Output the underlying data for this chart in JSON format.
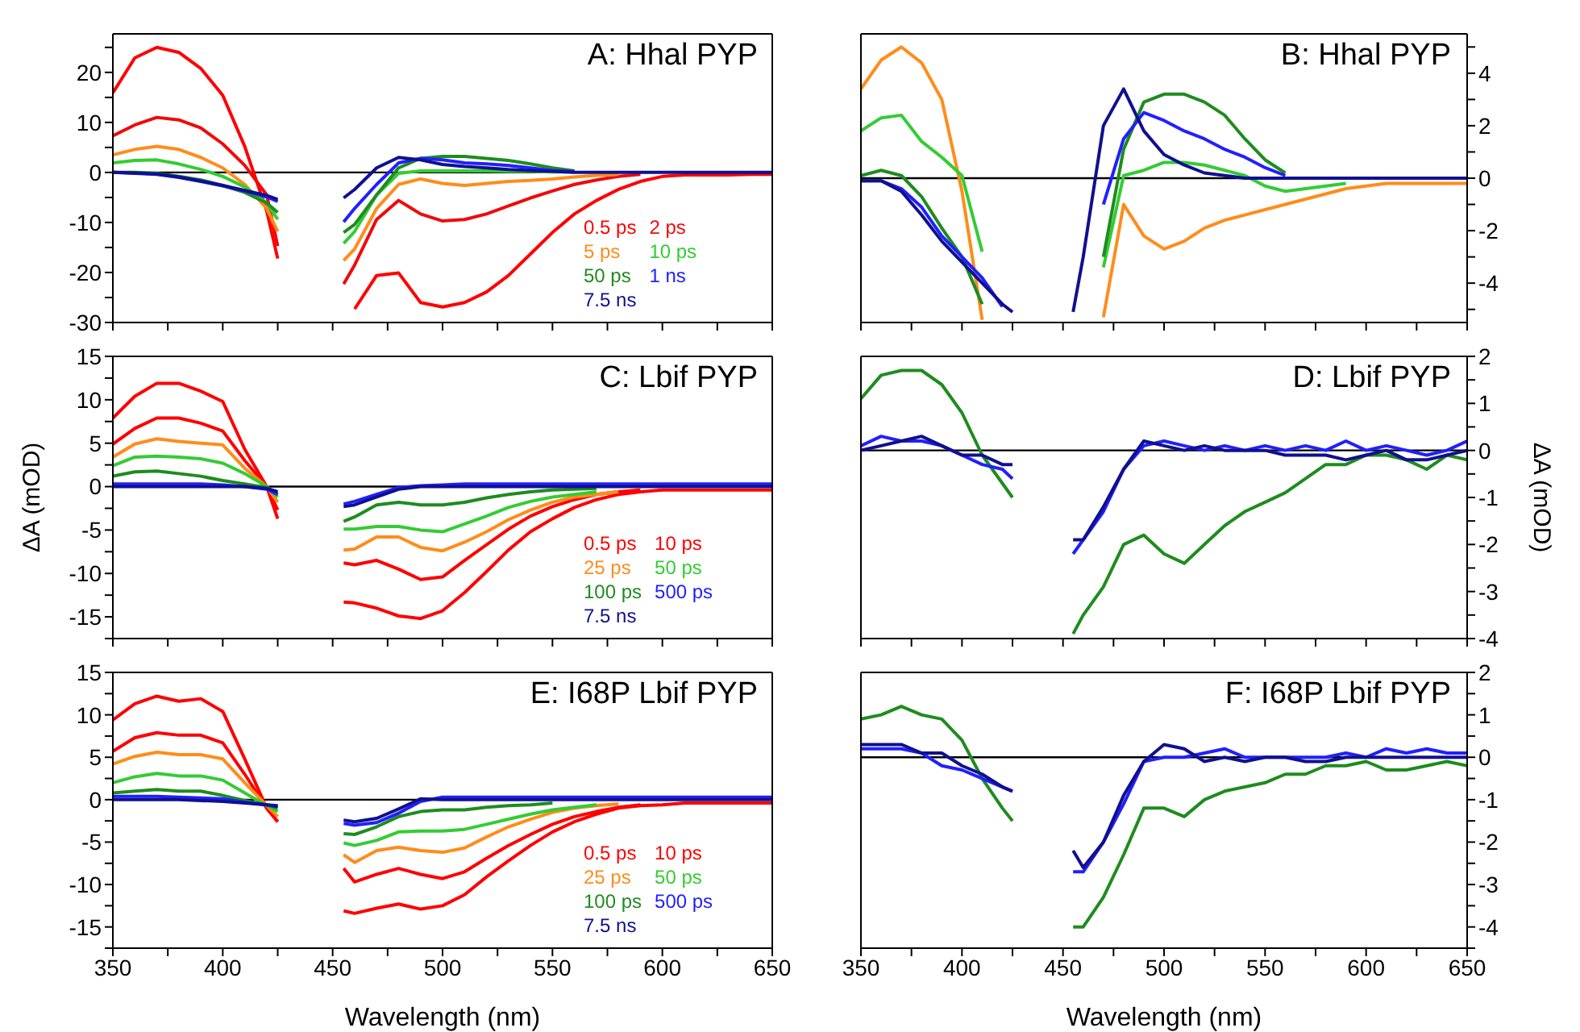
{
  "chart_data": [
    {
      "type": "line",
      "title": "A: Hhal PYP",
      "legend": "bottom right",
      "tick_labels": "y",
      "xlim": [
        350,
        650
      ],
      "xticks": [
        350,
        {
          "value": 375,
          "label": null
        },
        400,
        {
          "value": 425,
          "label": null
        },
        450,
        {
          "value": 475,
          "label": null
        },
        500,
        {
          "value": 525,
          "label": null
        },
        550,
        {
          "value": 575,
          "label": null
        },
        600,
        {
          "value": 625,
          "label": null
        },
        650
      ],
      "ylim": [
        -30,
        27.7
      ],
      "yticks": [
        -30,
        {
          "value": -25,
          "label": null
        },
        -20,
        {
          "value": -15,
          "label": null
        },
        -10,
        {
          "value": -5,
          "label": null
        },
        0,
        {
          "value": 5,
          "label": null
        },
        10,
        {
          "value": 15,
          "label": null
        },
        20,
        {
          "value": 25,
          "label": null
        }
      ],
      "ref_lines": [
        {
          "axis": "y",
          "value": 0,
          "color": "#000000"
        }
      ],
      "x": [
        350,
        360,
        370,
        380,
        390,
        400,
        410,
        420,
        425,
        440,
        455,
        460,
        470,
        480,
        490,
        500,
        510,
        520,
        530,
        540,
        550,
        560,
        570,
        580,
        590,
        600,
        610,
        620,
        630,
        640,
        650
      ],
      "series": [
        {
          "name": "0.5 ps",
          "color": "#ff0000",
          "values": [
            15.9,
            22.9,
            25,
            24,
            20.8,
            15.4,
            5.2,
            -7.7,
            -17.2,
            null,
            null,
            -27.3,
            -20.6,
            -20.1,
            -26,
            -26.9,
            -26,
            -23.9,
            -20.6,
            -16.3,
            -12,
            -8.3,
            -5.6,
            -3.4,
            -1.8,
            -0.8,
            -0.5,
            -0.5,
            -0.5,
            -0.4,
            -0.4
          ]
        },
        {
          "name": "2 ps",
          "color": "#f00a0a",
          "values": [
            7.3,
            9.5,
            11,
            10.5,
            8.9,
            5.7,
            1.4,
            -4.5,
            -14.7,
            null,
            -22.3,
            -18.5,
            -9.4,
            -5.6,
            -8.3,
            -9.7,
            -9.4,
            -8.3,
            -6.7,
            -5.1,
            -3.7,
            -2.4,
            -1.5,
            -0.8,
            -0.4,
            null,
            null,
            null,
            null,
            null,
            null
          ]
        },
        {
          "name": "5 ps",
          "color": "#ff8c1a",
          "values": [
            3.5,
            4.6,
            5.2,
            4.6,
            3.0,
            0.9,
            -2.4,
            -7.2,
            -11.8,
            null,
            -17.6,
            -15.3,
            -7.2,
            -2.4,
            -1.3,
            -2.2,
            -2.6,
            -2.2,
            -1.8,
            -1.6,
            -1.3,
            -0.9,
            -0.6,
            -0.4,
            null,
            null,
            null,
            null,
            null,
            null,
            null
          ]
        },
        {
          "name": "10 ps",
          "color": "#33cc33",
          "values": [
            1.9,
            2.4,
            2.5,
            1.7,
            0.6,
            -0.8,
            -2.9,
            -6.1,
            -9.4,
            null,
            -14.2,
            -11.8,
            -4.5,
            -0.2,
            0.3,
            0.3,
            0.3,
            0.3,
            0.2,
            0.2,
            0.1,
            0.1,
            null,
            null,
            null,
            null,
            null,
            null,
            null,
            null,
            null
          ]
        },
        {
          "name": "50 ps",
          "color": "#1e8c1e",
          "values": [
            0,
            0,
            -0.2,
            -0.8,
            -1.5,
            -2.6,
            -4,
            -6.1,
            -8,
            null,
            -12,
            -10.4,
            -4.5,
            0.9,
            2.8,
            3.2,
            3.2,
            2.8,
            2.4,
            1.7,
            0.9,
            0.3,
            null,
            null,
            null,
            null,
            null,
            null,
            null,
            null,
            null
          ]
        },
        {
          "name": "1 ns",
          "color": "#2020ff",
          "values": [
            0,
            -0.2,
            -0.4,
            -1,
            -1.8,
            -2.7,
            -3.7,
            -4.9,
            -5.8,
            null,
            -9.9,
            -7.2,
            -2.4,
            1.9,
            2.8,
            2.5,
            1.9,
            1.7,
            1.4,
            0.9,
            0.4,
            0.2,
            null,
            null,
            null,
            null,
            null,
            null,
            null,
            null,
            null
          ]
        },
        {
          "name": "7.5 ns",
          "color": "#10108f",
          "values": [
            0,
            -0.1,
            -0.3,
            -0.9,
            -1.7,
            -2.6,
            -3.6,
            -4.6,
            -5.4,
            null,
            -5.1,
            -3.4,
            0.9,
            3.0,
            2.5,
            1.6,
            1.2,
            0.9,
            0.6,
            0.4,
            0.2,
            0,
            0,
            0,
            0,
            0,
            0,
            0,
            0,
            0,
            0
          ]
        }
      ]
    },
    {
      "type": "line",
      "title": "B: Hhal PYP",
      "tick_labels": "y",
      "xlim": [
        350,
        650
      ],
      "xticks": [
        350,
        {
          "value": 375,
          "label": null
        },
        400,
        {
          "value": 425,
          "label": null
        },
        450,
        {
          "value": 475,
          "label": null
        },
        500,
        {
          "value": 525,
          "label": null
        },
        550,
        {
          "value": 575,
          "label": null
        },
        600,
        {
          "value": 625,
          "label": null
        },
        650
      ],
      "ylim": [
        -5.5,
        5.5
      ],
      "yticks": [
        {
          "value": -5,
          "label": null
        },
        -4,
        {
          "value": -3,
          "label": null
        },
        -2,
        {
          "value": -1,
          "label": null
        },
        0,
        {
          "value": 1,
          "label": null
        },
        2,
        {
          "value": 3,
          "label": null
        },
        4,
        {
          "value": 5,
          "label": null
        }
      ],
      "ref_lines": [
        {
          "axis": "y",
          "value": 0,
          "color": "#000000"
        }
      ],
      "x": [
        350,
        360,
        370,
        380,
        390,
        400,
        410,
        420,
        425,
        440,
        455,
        460,
        470,
        480,
        490,
        500,
        510,
        520,
        530,
        540,
        550,
        560,
        570,
        580,
        590,
        600,
        610,
        620,
        630,
        640,
        650
      ],
      "series": [
        {
          "color": "#ff8c1a",
          "values": [
            3.4,
            4.5,
            5.0,
            4.4,
            3.0,
            -0.5,
            -5.4,
            null,
            null,
            null,
            null,
            null,
            -5.3,
            -1.0,
            -2.2,
            -2.7,
            -2.4,
            -1.9,
            -1.6,
            -1.4,
            -1.2,
            -1.0,
            -0.8,
            -0.6,
            -0.4,
            -0.3,
            -0.2,
            -0.2,
            -0.2,
            -0.2,
            -0.2
          ]
        },
        {
          "color": "#33cc33",
          "values": [
            1.8,
            2.3,
            2.4,
            1.4,
            0.8,
            0.1,
            -2.8,
            null,
            null,
            null,
            null,
            null,
            -3.4,
            0.1,
            0.3,
            0.6,
            0.6,
            0.5,
            0.3,
            0.1,
            -0.3,
            -0.5,
            -0.4,
            -0.3,
            -0.2,
            null,
            null,
            null,
            null,
            null,
            null
          ]
        },
        {
          "color": "#1e8c1e",
          "values": [
            0.1,
            0.3,
            0.1,
            -0.7,
            -1.9,
            -3.0,
            -4.8,
            null,
            null,
            null,
            null,
            null,
            -3.0,
            1.1,
            2.9,
            3.2,
            3.2,
            2.9,
            2.4,
            1.5,
            0.7,
            0.2,
            null,
            null,
            null,
            null,
            null,
            null,
            null,
            null,
            null
          ]
        },
        {
          "color": "#2020ff",
          "values": [
            -0.1,
            -0.1,
            -0.4,
            -1.1,
            -2.2,
            -3.0,
            -3.8,
            -4.9,
            null,
            null,
            null,
            null,
            -1.0,
            1.5,
            2.5,
            2.2,
            1.8,
            1.5,
            1.1,
            0.8,
            0.4,
            0.1,
            null,
            null,
            null,
            null,
            null,
            null,
            null,
            null,
            null
          ]
        },
        {
          "color": "#10108f",
          "values": [
            -0.1,
            -0.1,
            -0.5,
            -1.4,
            -2.4,
            -3.2,
            -4.0,
            -4.8,
            -5.1,
            null,
            -5.1,
            -3.0,
            2.0,
            3.4,
            1.8,
            0.9,
            0.5,
            0.2,
            0.1,
            0,
            0,
            0,
            0,
            0,
            0,
            0,
            0,
            0,
            0,
            0,
            0
          ]
        }
      ]
    },
    {
      "type": "line",
      "title": "C: Lbif PYP",
      "ylabel": "ΔA (mOD)",
      "legend": "bottom right",
      "tick_labels": "y",
      "xlim": [
        350,
        650
      ],
      "xticks": [
        350,
        {
          "value": 375,
          "label": null
        },
        400,
        {
          "value": 425,
          "label": null
        },
        450,
        {
          "value": 475,
          "label": null
        },
        500,
        {
          "value": 525,
          "label": null
        },
        550,
        {
          "value": 575,
          "label": null
        },
        600,
        {
          "value": 625,
          "label": null
        },
        650
      ],
      "ylim": [
        -17.5,
        15
      ],
      "yticks": [
        {
          "value": -17.5,
          "label": null
        },
        -15,
        {
          "value": -12.5,
          "label": null
        },
        -10,
        {
          "value": -7.5,
          "label": null
        },
        -5,
        {
          "value": -2.5,
          "label": null
        },
        0,
        {
          "value": 2.5,
          "label": null
        },
        5,
        {
          "value": 7.5,
          "label": null
        },
        10,
        {
          "value": 12.5,
          "label": null
        },
        15
      ],
      "ref_lines": [
        {
          "axis": "y",
          "value": 0,
          "color": "#000000"
        }
      ],
      "x": [
        350,
        360,
        370,
        380,
        390,
        400,
        410,
        420,
        425,
        440,
        455,
        460,
        470,
        480,
        490,
        500,
        510,
        520,
        530,
        540,
        550,
        560,
        570,
        580,
        590,
        600,
        610,
        620,
        630,
        640,
        650
      ],
      "series": [
        {
          "name": "0.5 ps",
          "color": "#ff0000",
          "values": [
            7.9,
            10.4,
            11.9,
            11.9,
            11,
            9.8,
            4.3,
            0,
            -3.7,
            null,
            -13.3,
            -13.4,
            -14,
            -14.9,
            -15.2,
            -14.3,
            -12.2,
            -9.8,
            -7.3,
            -5.2,
            -3.7,
            -2.4,
            -1.5,
            -0.9,
            -0.6,
            -0.4,
            -0.4,
            -0.4,
            -0.4,
            -0.4,
            -0.4
          ]
        },
        {
          "name": "10 ps",
          "color": "#ff0000",
          "values": [
            4.9,
            6.7,
            7.9,
            7.9,
            7.3,
            6.4,
            3.0,
            0,
            -2.7,
            null,
            -8.8,
            -9.0,
            -8.5,
            -9.5,
            -10.7,
            -10.4,
            -8.5,
            -6.7,
            -4.9,
            -3.4,
            -2.3,
            -1.5,
            -0.9,
            -0.6,
            -0.4,
            null,
            null,
            null,
            null,
            null,
            null
          ]
        },
        {
          "name": "25 ps",
          "color": "#ff8c1a",
          "values": [
            3.4,
            4.9,
            5.5,
            5.2,
            5.0,
            4.8,
            2.1,
            0,
            -1.8,
            null,
            -7.3,
            -7.2,
            -5.8,
            -5.8,
            -7.0,
            -7.4,
            -6.4,
            -5.2,
            -3.8,
            -2.7,
            -1.8,
            -1.2,
            -0.9,
            -0.6,
            null,
            null,
            null,
            null,
            null,
            null,
            null
          ]
        },
        {
          "name": "50 ps",
          "color": "#33cc33",
          "values": [
            2.4,
            3.4,
            3.5,
            3.4,
            3.2,
            2.7,
            1.5,
            0,
            -1.2,
            null,
            -4.9,
            -4.9,
            -4.6,
            -4.6,
            -5,
            -5.2,
            -4.3,
            -3.4,
            -2.4,
            -1.7,
            -1.2,
            -0.9,
            -0.6,
            null,
            null,
            null,
            null,
            null,
            null,
            null,
            null
          ]
        },
        {
          "name": "100 ps",
          "color": "#1e8c1e",
          "values": [
            1.2,
            1.7,
            1.8,
            1.5,
            1.2,
            0.7,
            0.3,
            -0.1,
            -0.9,
            null,
            -4.0,
            -3.5,
            -2.1,
            -1.8,
            -2.1,
            -2.1,
            -1.8,
            -1.3,
            -0.9,
            -0.6,
            -0.4,
            -0.3,
            -0.2,
            null,
            null,
            null,
            null,
            null,
            null,
            null,
            null
          ]
        },
        {
          "name": "500 ps",
          "color": "#2020ff",
          "values": [
            0.3,
            0.3,
            0.3,
            0.3,
            0.3,
            0.2,
            0,
            -0.3,
            -0.9,
            null,
            -2.0,
            -1.7,
            -0.9,
            -0.1,
            0.1,
            0.2,
            0.3,
            0.3,
            0.3,
            0.3,
            0.3,
            0.3,
            0.3,
            0.3,
            0.3,
            0.3,
            0.3,
            0.3,
            0.3,
            0.3,
            0.3
          ]
        },
        {
          "name": "7.5 ns",
          "color": "#10108f",
          "values": [
            0,
            0,
            0,
            0,
            0,
            0,
            0,
            -0.2,
            -0.6,
            null,
            -2.3,
            -2.1,
            -1.2,
            -0.3,
            0,
            0,
            0,
            0,
            0,
            0,
            0,
            0,
            0,
            0,
            0,
            0,
            0,
            0,
            0,
            0,
            0
          ]
        }
      ]
    },
    {
      "type": "line",
      "title": "D: Lbif PYP",
      "ylabel": "ΔA (mOD)",
      "tick_labels": "y",
      "xlim": [
        350,
        650
      ],
      "xticks": [
        350,
        {
          "value": 375,
          "label": null
        },
        400,
        {
          "value": 425,
          "label": null
        },
        450,
        {
          "value": 475,
          "label": null
        },
        500,
        {
          "value": 525,
          "label": null
        },
        550,
        {
          "value": 575,
          "label": null
        },
        600,
        {
          "value": 625,
          "label": null
        },
        650
      ],
      "ylim": [
        -4,
        2
      ],
      "yticks": [
        -4,
        {
          "value": -3.5,
          "label": null
        },
        -3,
        {
          "value": -2.5,
          "label": null
        },
        -2,
        {
          "value": -1.5,
          "label": null
        },
        -1,
        {
          "value": -0.5,
          "label": null
        },
        0,
        {
          "value": 0.5,
          "label": null
        },
        1,
        {
          "value": 1.5,
          "label": null
        },
        2
      ],
      "ref_lines": [
        {
          "axis": "y",
          "value": 0,
          "color": "#000000"
        }
      ],
      "x": [
        350,
        360,
        370,
        380,
        390,
        400,
        410,
        420,
        425,
        440,
        455,
        460,
        470,
        480,
        490,
        500,
        510,
        520,
        530,
        540,
        550,
        560,
        570,
        580,
        590,
        600,
        610,
        620,
        630,
        640,
        650
      ],
      "series": [
        {
          "color": "#1e8c1e",
          "values": [
            1.1,
            1.6,
            1.7,
            1.7,
            1.4,
            0.8,
            -0.1,
            -0.7,
            -1.0,
            null,
            -3.9,
            -3.5,
            -2.9,
            -2.0,
            -1.8,
            -2.2,
            -2.4,
            -2.0,
            -1.6,
            -1.3,
            -1.1,
            -0.9,
            -0.6,
            -0.3,
            -0.3,
            -0.1,
            -0.1,
            -0.2,
            -0.4,
            -0.1,
            -0.2
          ]
        },
        {
          "color": "#2020ff",
          "values": [
            0.1,
            0.3,
            0.2,
            0.2,
            0.1,
            -0.1,
            -0.3,
            -0.4,
            -0.6,
            null,
            -2.2,
            -1.9,
            -1.3,
            -0.4,
            0.1,
            0.2,
            0.1,
            0,
            0.1,
            0,
            0.1,
            0,
            0.1,
            0,
            0.2,
            0,
            0.1,
            0,
            -0.1,
            0,
            0.2
          ]
        },
        {
          "color": "#10108f",
          "values": [
            0,
            0.1,
            0.2,
            0.3,
            0.1,
            -0.1,
            -0.1,
            -0.3,
            -0.3,
            null,
            -1.9,
            -1.9,
            -1.2,
            -0.4,
            0.2,
            0.1,
            0,
            0.1,
            0,
            0,
            0,
            -0.1,
            -0.1,
            -0.1,
            -0.2,
            -0.1,
            0,
            -0.2,
            -0.2,
            -0.1,
            0
          ]
        }
      ]
    },
    {
      "type": "line",
      "title": "E: I68P Lbif PYP",
      "xlabel": "Wavelength (nm)",
      "legend": "bottom right",
      "xlim": [
        350,
        650
      ],
      "xticks": [
        350,
        {
          "value": 375,
          "label": null
        },
        400,
        {
          "value": 425,
          "label": null
        },
        450,
        {
          "value": 475,
          "label": null
        },
        500,
        {
          "value": 525,
          "label": null
        },
        550,
        {
          "value": 575,
          "label": null
        },
        600,
        {
          "value": 625,
          "label": null
        },
        650
      ],
      "ylim": [
        -17.5,
        15
      ],
      "yticks": [
        {
          "value": -17.5,
          "label": null
        },
        -15,
        {
          "value": -12.5,
          "label": null
        },
        -10,
        {
          "value": -7.5,
          "label": null
        },
        -5,
        {
          "value": -2.5,
          "label": null
        },
        0,
        {
          "value": 2.5,
          "label": null
        },
        5,
        {
          "value": 7.5,
          "label": null
        },
        10,
        {
          "value": 12.5,
          "label": null
        },
        15
      ],
      "ref_lines": [
        {
          "axis": "y",
          "value": 0,
          "color": "#000000"
        }
      ],
      "x": [
        350,
        360,
        370,
        380,
        390,
        400,
        410,
        420,
        425,
        440,
        455,
        460,
        470,
        480,
        490,
        500,
        510,
        520,
        530,
        540,
        550,
        560,
        570,
        580,
        590,
        600,
        610,
        620,
        630,
        640,
        650
      ],
      "series": [
        {
          "name": "0.5 ps",
          "color": "#ff0000",
          "values": [
            9.4,
            11.3,
            12.2,
            11.6,
            11.9,
            10.4,
            4.8,
            -1,
            -2.6,
            null,
            -13.1,
            -13.4,
            -12.8,
            -12.3,
            -12.9,
            -12.5,
            -11.2,
            -9.1,
            -7.2,
            -5.4,
            -3.8,
            -2.6,
            -1.7,
            -1.0,
            -0.7,
            -0.6,
            -0.4,
            -0.4,
            -0.4,
            -0.4,
            -0.4
          ]
        },
        {
          "name": "10 ps",
          "color": "#ff0000",
          "values": [
            5.7,
            7.3,
            7.9,
            7.6,
            7.6,
            6.7,
            3.0,
            -1,
            -2.6,
            null,
            -8.1,
            -9.7,
            -8.8,
            -8.1,
            -8.8,
            -9.3,
            -8.5,
            -6.9,
            -5.4,
            -4.1,
            -2.9,
            -2.0,
            -1.4,
            -0.9,
            -0.6,
            null,
            null,
            null,
            null,
            null,
            null
          ]
        },
        {
          "name": "25 ps",
          "color": "#ff8c1a",
          "values": [
            4.2,
            5.1,
            5.6,
            5.3,
            5.3,
            4.8,
            2.0,
            -0.7,
            -2.0,
            null,
            -6.5,
            -7.4,
            -6.0,
            -5.6,
            -6.0,
            -6.2,
            -5.7,
            -4.4,
            -3.2,
            -2.3,
            -1.5,
            -1.0,
            -0.7,
            -0.5,
            null,
            null,
            null,
            null,
            null,
            null,
            null
          ]
        },
        {
          "name": "50 ps",
          "color": "#33cc33",
          "values": [
            2.0,
            2.7,
            3.1,
            2.8,
            2.8,
            2.3,
            0.8,
            -0.7,
            -1.4,
            null,
            -5.1,
            -5.4,
            -4.8,
            -3.8,
            -3.7,
            -3.7,
            -3.5,
            -2.9,
            -2.3,
            -1.7,
            -1.2,
            -0.9,
            -0.6,
            null,
            null,
            null,
            null,
            null,
            null,
            null,
            null
          ]
        },
        {
          "name": "100 ps",
          "color": "#1e8c1e",
          "values": [
            0.8,
            1.0,
            1.2,
            1.0,
            1.0,
            0.5,
            -0.1,
            -0.6,
            -1.0,
            null,
            -4.0,
            -4.1,
            -3.2,
            -2.0,
            -1.4,
            -1.2,
            -1.2,
            -0.9,
            -0.7,
            -0.6,
            -0.4,
            null,
            null,
            null,
            null,
            null,
            null,
            null,
            null,
            null,
            null
          ]
        },
        {
          "name": "500 ps",
          "color": "#2020ff",
          "values": [
            0.4,
            0.4,
            0.4,
            0.3,
            0.2,
            0.1,
            -0.3,
            -0.6,
            -0.7,
            null,
            -2.8,
            -3.0,
            -2.7,
            -1.6,
            -0.2,
            0.3,
            0.3,
            0.3,
            0.3,
            0.3,
            0.3,
            0.3,
            0.3,
            0.3,
            0.3,
            0.3,
            0.3,
            0.3,
            0.3,
            0.3,
            0.3
          ]
        },
        {
          "name": "7.5 ns",
          "color": "#10108f",
          "values": [
            0,
            0,
            0,
            0,
            -0.1,
            -0.2,
            -0.4,
            -0.6,
            -0.8,
            null,
            -2.4,
            -2.6,
            -2.2,
            -1.1,
            0.1,
            0,
            0,
            0,
            0,
            0,
            0,
            0,
            0,
            0,
            0,
            0,
            0,
            0,
            0,
            0,
            0
          ]
        }
      ]
    },
    {
      "type": "line",
      "title": "F: I68P Lbif PYP",
      "xlabel": "Wavelength (nm)",
      "xlim": [
        350,
        650
      ],
      "xticks": [
        350,
        {
          "value": 375,
          "label": null
        },
        400,
        {
          "value": 425,
          "label": null
        },
        450,
        {
          "value": 475,
          "label": null
        },
        500,
        {
          "value": 525,
          "label": null
        },
        550,
        {
          "value": 575,
          "label": null
        },
        600,
        {
          "value": 625,
          "label": null
        },
        650
      ],
      "ylim": [
        -4.5,
        2
      ],
      "yticks": [
        {
          "value": -4.5,
          "label": null
        },
        -4,
        {
          "value": -3.5,
          "label": null
        },
        -3,
        {
          "value": -2.5,
          "label": null
        },
        -2,
        {
          "value": -1.5,
          "label": null
        },
        -1,
        {
          "value": -0.5,
          "label": null
        },
        0,
        {
          "value": 0.5,
          "label": null
        },
        1,
        {
          "value": 1.5,
          "label": null
        },
        2
      ],
      "ref_lines": [
        {
          "axis": "y",
          "value": 0,
          "color": "#000000"
        }
      ],
      "x": [
        350,
        360,
        370,
        380,
        390,
        400,
        410,
        420,
        425,
        440,
        455,
        460,
        470,
        480,
        490,
        500,
        510,
        520,
        530,
        540,
        550,
        560,
        570,
        580,
        590,
        600,
        610,
        620,
        630,
        640,
        650
      ],
      "series": [
        {
          "color": "#1e8c1e",
          "values": [
            0.9,
            1.0,
            1.2,
            1.0,
            0.9,
            0.4,
            -0.5,
            -1.2,
            -1.5,
            null,
            -4.0,
            -4.0,
            -3.3,
            -2.3,
            -1.2,
            -1.2,
            -1.4,
            -1.0,
            -0.8,
            -0.7,
            -0.6,
            -0.4,
            -0.4,
            -0.2,
            -0.2,
            -0.1,
            -0.3,
            -0.3,
            -0.2,
            -0.1,
            -0.2
          ]
        },
        {
          "color": "#2020ff",
          "values": [
            0.2,
            0.2,
            0.2,
            0.1,
            -0.2,
            -0.3,
            -0.5,
            -0.7,
            -0.8,
            null,
            -2.7,
            -2.7,
            -2.0,
            -1.1,
            -0.1,
            0,
            0,
            0.1,
            0.2,
            0,
            0,
            0,
            0,
            0,
            0.1,
            0,
            0.2,
            0.1,
            0.2,
            0.1,
            0.1
          ]
        },
        {
          "color": "#10108f",
          "values": [
            0.3,
            0.3,
            0.3,
            0.1,
            0.1,
            -0.2,
            -0.4,
            -0.7,
            -0.8,
            null,
            -2.2,
            -2.6,
            -2.0,
            -0.9,
            -0.1,
            0.3,
            0.2,
            -0.1,
            0,
            -0.1,
            0,
            0,
            -0.1,
            -0.1,
            0,
            0,
            0,
            0,
            0,
            0,
            0
          ]
        }
      ]
    }
  ]
}
